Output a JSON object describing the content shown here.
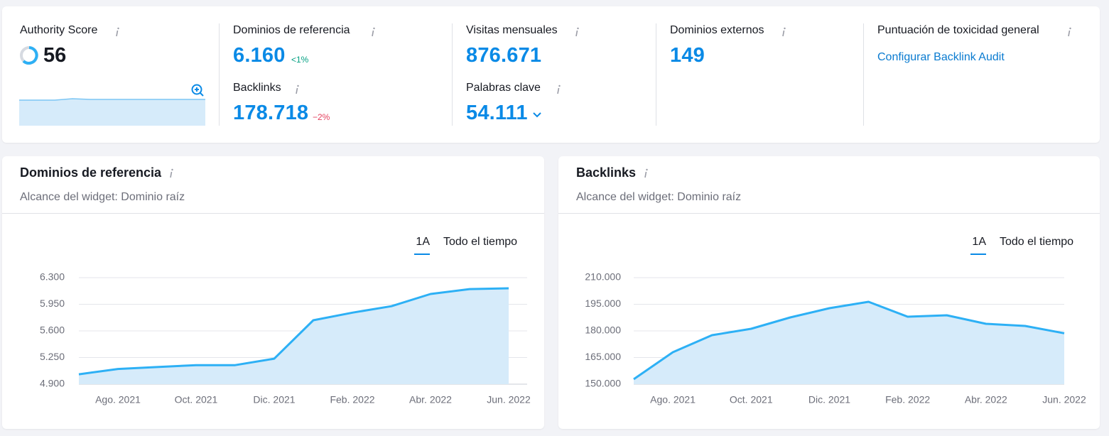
{
  "metrics": [
    {
      "label": "Authority Score",
      "value": "56"
    },
    {
      "label": "Dominios de referencia",
      "value": "6.160",
      "change": "<1%"
    },
    {
      "label": "Backlinks",
      "value": "178.718",
      "change": "−2%"
    },
    {
      "label": "Visitas mensuales",
      "value": "876.671"
    },
    {
      "label": "Palabras clave",
      "value": "54.111"
    },
    {
      "label": "Dominios externos",
      "value": "149"
    },
    {
      "label": "Puntuación de toxicidad general",
      "link": "Configurar Backlink Audit"
    }
  ],
  "chart_data": [
    {
      "type": "line",
      "title": "Dominios de referencia",
      "subtitle": "Alcance del widget: Dominio raíz",
      "range_options": [
        "1A",
        "Todo el tiempo"
      ],
      "categories": [
        null,
        "Ago. 2021",
        null,
        "Oct. 2021",
        null,
        "Dic. 2021",
        null,
        "Feb. 2022",
        null,
        "Abr. 2022",
        null,
        "Jun. 2022"
      ],
      "values": [
        5030,
        5100,
        5125,
        5150,
        5150,
        5235,
        5740,
        5840,
        5925,
        6085,
        6150,
        6160
      ],
      "color": "#2db0f5",
      "ylim": [
        4900,
        6300
      ],
      "yticks": [
        {
          "value": 4900,
          "label": "4.900"
        },
        {
          "value": 5250,
          "label": "5.250"
        },
        {
          "value": 5600,
          "label": "5.600"
        },
        {
          "value": 5950,
          "label": "5.950"
        },
        {
          "value": 6300,
          "label": "6.300"
        }
      ],
      "grid": true
    },
    {
      "type": "line",
      "title": "Backlinks",
      "subtitle": "Alcance del widget: Dominio raíz",
      "range_options": [
        "1A",
        "Todo el tiempo"
      ],
      "categories": [
        null,
        "Ago. 2021",
        null,
        "Oct. 2021",
        null,
        "Dic. 2021",
        null,
        "Feb. 2022",
        null,
        "Abr. 2022",
        null,
        "Jun. 2022"
      ],
      "values": [
        152800,
        168000,
        177600,
        181200,
        187600,
        192800,
        196400,
        188000,
        188800,
        184000,
        182800,
        178700
      ],
      "color": "#2db0f5",
      "ylim": [
        150000,
        210000
      ],
      "yticks": [
        {
          "value": 150000,
          "label": "150.000"
        },
        {
          "value": 165000,
          "label": "165.000"
        },
        {
          "value": 180000,
          "label": "180.000"
        },
        {
          "value": 195000,
          "label": "195.000"
        },
        {
          "value": 210000,
          "label": "210.000"
        }
      ],
      "grid": true
    }
  ]
}
